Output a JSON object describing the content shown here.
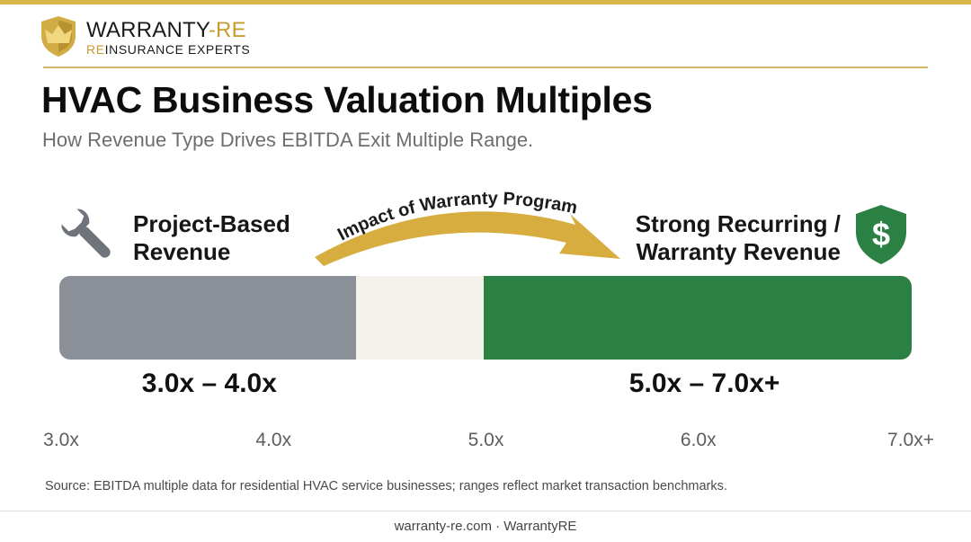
{
  "brand": {
    "name_main": "WARRANTY",
    "name_sep": "-",
    "name_re": "RE",
    "tag_re": "RE",
    "tag_rest": "INSURANCE EXPERTS",
    "colors": {
      "gold": "#d8b64a",
      "gold_text": "#c79b2e"
    }
  },
  "header": {
    "title": "HVAC Business Valuation Multiples",
    "subtitle": "How Revenue Type Drives EBITDA Exit Multiple Range."
  },
  "chart_data": {
    "type": "bar",
    "orientation": "horizontal-range",
    "axis": {
      "ticks": [
        3.0,
        4.0,
        5.0,
        6.0,
        7.0
      ],
      "tick_labels": [
        "3.0x",
        "4.0x",
        "5.0x",
        "6.0x",
        "7.0x+"
      ],
      "range": [
        3.0,
        7.0
      ]
    },
    "series": [
      {
        "name": "Project-Based Revenue",
        "range": [
          3.0,
          4.0
        ],
        "range_label": "3.0x – 4.0x",
        "color": "#8a8f98"
      },
      {
        "name": "Strong Recurring / Warranty Revenue",
        "range": [
          5.0,
          7.0
        ],
        "range_label": "5.0x – 7.0x+",
        "color": "#2b8144"
      }
    ],
    "gap_color": "#f4f2ea",
    "annotation": "Impact of Warranty Program",
    "labels": {
      "left_line1": "Project-Based",
      "left_line2": "Revenue",
      "right_line1": "Strong Recurring /",
      "right_line2": "Warranty Revenue"
    }
  },
  "icons": {
    "left": "wrench-icon",
    "right": "dollar-shield-icon"
  },
  "source": "Source: EBITDA multiple data for residential HVAC service businesses; ranges reflect market transaction benchmarks.",
  "footer": "warranty-re.com · WarrantyRE"
}
